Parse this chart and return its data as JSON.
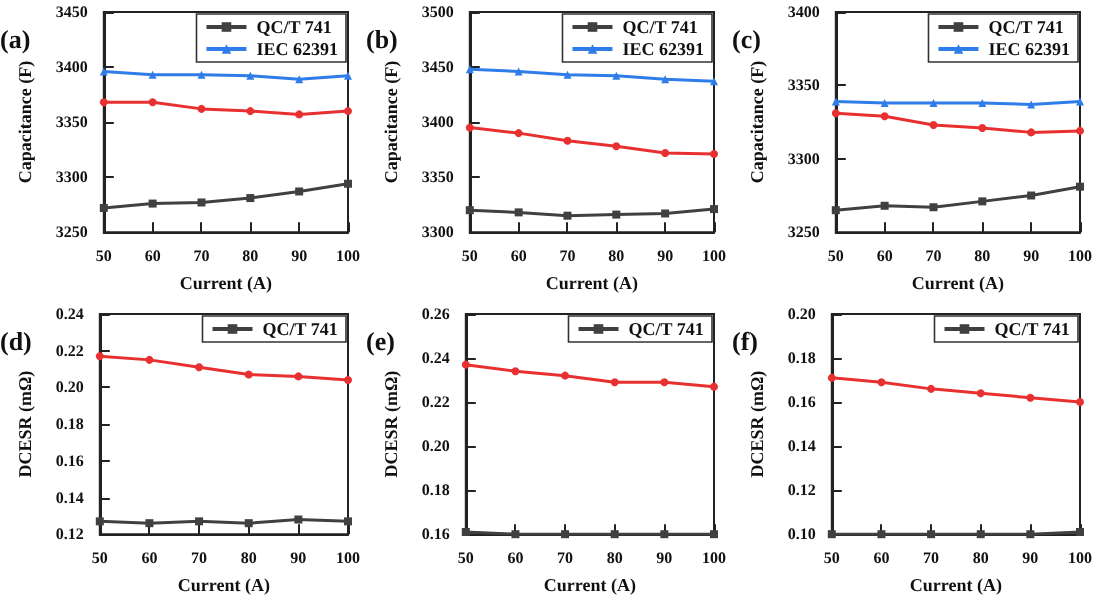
{
  "chart_data": [
    {
      "type": "line",
      "title": "(a)",
      "xlabel": "Current (A)",
      "ylabel": "Capacitance (F)",
      "x": [
        50,
        60,
        70,
        80,
        90,
        100
      ],
      "xlim": [
        50,
        100
      ],
      "xticks": [
        50,
        60,
        70,
        80,
        90,
        100
      ],
      "ylim": [
        3250,
        3450
      ],
      "yticks": [
        3250,
        3300,
        3350,
        3400,
        3450
      ],
      "grid": false,
      "legend": "top right",
      "series": [
        {
          "name": "QC/T 741",
          "color": "#404040",
          "marker": "square",
          "values": [
            3272,
            3276,
            3277,
            3281,
            3287,
            3294
          ]
        },
        {
          "color": "#e83030",
          "marker": "circle",
          "values": [
            3368,
            3368,
            3362,
            3360,
            3357,
            3360
          ]
        },
        {
          "name": "IEC 62391",
          "color": "#2f7de8",
          "marker": "triangle",
          "values": [
            3396,
            3393,
            3393,
            3392,
            3389,
            3392
          ]
        }
      ]
    },
    {
      "type": "line",
      "title": "(b)",
      "xlabel": "Current (A)",
      "ylabel": "Capacitance (F)",
      "x": [
        50,
        60,
        70,
        80,
        90,
        100
      ],
      "xlim": [
        50,
        100
      ],
      "xticks": [
        50,
        60,
        70,
        80,
        90,
        100
      ],
      "ylim": [
        3300,
        3500
      ],
      "yticks": [
        3300,
        3350,
        3400,
        3450,
        3500
      ],
      "grid": false,
      "legend": "top right",
      "series": [
        {
          "name": "QC/T 741",
          "color": "#404040",
          "marker": "square",
          "values": [
            3320,
            3318,
            3315,
            3316,
            3317,
            3321
          ]
        },
        {
          "color": "#e83030",
          "marker": "circle",
          "values": [
            3395,
            3390,
            3383,
            3378,
            3372,
            3371
          ]
        },
        {
          "name": "IEC 62391",
          "color": "#2f7de8",
          "marker": "triangle",
          "values": [
            3448,
            3446,
            3443,
            3442,
            3439,
            3437
          ]
        }
      ]
    },
    {
      "type": "line",
      "title": "(c)",
      "xlabel": "Current (A)",
      "ylabel": "Capacitance (F)",
      "x": [
        50,
        60,
        70,
        80,
        90,
        100
      ],
      "xlim": [
        50,
        100
      ],
      "xticks": [
        50,
        60,
        70,
        80,
        90,
        100
      ],
      "ylim": [
        3250,
        3400
      ],
      "yticks": [
        3250,
        3300,
        3350,
        3400
      ],
      "grid": false,
      "legend": "top right",
      "series": [
        {
          "name": "QC/T 741",
          "color": "#404040",
          "marker": "square",
          "values": [
            3265,
            3268,
            3267,
            3271,
            3275,
            3281
          ]
        },
        {
          "color": "#e83030",
          "marker": "circle",
          "values": [
            3331,
            3329,
            3323,
            3321,
            3318,
            3319
          ]
        },
        {
          "name": "IEC 62391",
          "color": "#2f7de8",
          "marker": "triangle",
          "values": [
            3339,
            3338,
            3338,
            3338,
            3337,
            3339
          ]
        }
      ]
    },
    {
      "type": "line",
      "title": "(d)",
      "xlabel": "Current (A)",
      "ylabel": "DCESR (mΩ)",
      "x": [
        50,
        60,
        70,
        80,
        90,
        100
      ],
      "xlim": [
        50,
        100
      ],
      "xticks": [
        50,
        60,
        70,
        80,
        90,
        100
      ],
      "ylim": [
        0.12,
        0.24
      ],
      "yticks": [
        {
          "value": 0.12,
          "label": "0.12"
        },
        {
          "value": 0.14,
          "label": "0.14"
        },
        {
          "value": 0.16,
          "label": "0.16"
        },
        {
          "value": 0.18,
          "label": "0.18"
        },
        {
          "value": 0.2,
          "label": "0.20"
        },
        {
          "value": 0.22,
          "label": "0.22"
        },
        {
          "value": 0.24,
          "label": "0.24"
        }
      ],
      "grid": false,
      "legend": "top right",
      "series": [
        {
          "name": "QC/T 741",
          "color": "#404040",
          "marker": "square",
          "values": [
            0.127,
            0.126,
            0.127,
            0.126,
            0.128,
            0.127
          ]
        },
        {
          "color": "#e83030",
          "marker": "circle",
          "values": [
            0.217,
            0.215,
            0.211,
            0.207,
            0.206,
            0.204
          ]
        }
      ]
    },
    {
      "type": "line",
      "title": "(e)",
      "xlabel": "Current (A)",
      "ylabel": "DCESR (mΩ)",
      "x": [
        50,
        60,
        70,
        80,
        90,
        100
      ],
      "xlim": [
        50,
        100
      ],
      "xticks": [
        50,
        60,
        70,
        80,
        90,
        100
      ],
      "ylim": [
        0.16,
        0.26
      ],
      "yticks": [
        {
          "value": 0.16,
          "label": "0.16"
        },
        {
          "value": 0.18,
          "label": "0.18"
        },
        {
          "value": 0.2,
          "label": "0.20"
        },
        {
          "value": 0.22,
          "label": "0.22"
        },
        {
          "value": 0.24,
          "label": "0.24"
        },
        {
          "value": 0.26,
          "label": "0.26"
        }
      ],
      "grid": false,
      "legend": "top right",
      "series": [
        {
          "name": "QC/T 741",
          "color": "#404040",
          "marker": "square",
          "values": [
            0.161,
            0.16,
            0.16,
            0.16,
            0.16,
            0.16
          ]
        },
        {
          "color": "#e83030",
          "marker": "circle",
          "values": [
            0.237,
            0.234,
            0.232,
            0.229,
            0.229,
            0.227
          ]
        }
      ]
    },
    {
      "type": "line",
      "title": "(f)",
      "xlabel": "Current (A)",
      "ylabel": "DCESR (mΩ)",
      "x": [
        50,
        60,
        70,
        80,
        90,
        100
      ],
      "xlim": [
        50,
        100
      ],
      "xticks": [
        50,
        60,
        70,
        80,
        90,
        100
      ],
      "ylim": [
        0.1,
        0.2
      ],
      "yticks": [
        {
          "value": 0.1,
          "label": "0.10"
        },
        {
          "value": 0.12,
          "label": "0.12"
        },
        {
          "value": 0.14,
          "label": "0.14"
        },
        {
          "value": 0.16,
          "label": "0.16"
        },
        {
          "value": 0.18,
          "label": "0.18"
        },
        {
          "value": 0.2,
          "label": "0.20"
        }
      ],
      "grid": false,
      "legend": "top right",
      "series": [
        {
          "name": "QC/T 741",
          "color": "#404040",
          "marker": "square",
          "values": [
            0.1,
            0.1,
            0.1,
            0.1,
            0.1,
            0.101
          ]
        },
        {
          "color": "#e83030",
          "marker": "circle",
          "values": [
            0.171,
            0.169,
            0.166,
            0.164,
            0.162,
            0.16
          ]
        }
      ]
    }
  ]
}
